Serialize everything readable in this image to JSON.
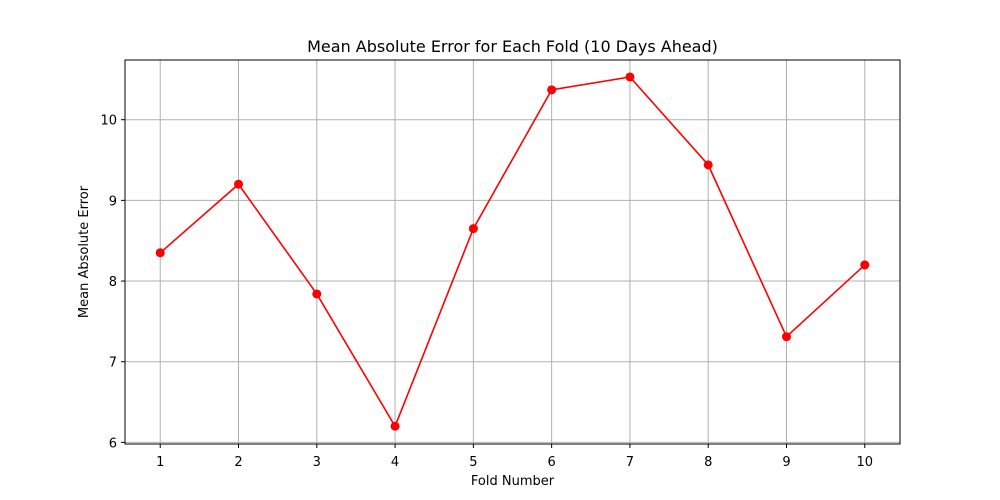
{
  "chart_data": {
    "type": "line",
    "title": "Mean Absolute Error for Each Fold (10 Days Ahead)",
    "xlabel": "Fold Number",
    "ylabel": "Mean Absolute Error",
    "categories": [
      "1",
      "2",
      "3",
      "4",
      "5",
      "6",
      "7",
      "8",
      "9",
      "10"
    ],
    "x": [
      1,
      2,
      3,
      4,
      5,
      6,
      7,
      8,
      9,
      10
    ],
    "series": [
      {
        "values": [
          8.35,
          9.2,
          7.84,
          6.2,
          8.65,
          10.37,
          10.53,
          9.44,
          7.31,
          8.2
        ],
        "color": "#ff0000",
        "marker": "circle"
      }
    ],
    "xlim": [
      0.55,
      10.45
    ],
    "ylim": [
      5.98,
      10.74
    ],
    "yticks": [
      6,
      7,
      8,
      9,
      10
    ],
    "xticks": [
      1,
      2,
      3,
      4,
      5,
      6,
      7,
      8,
      9,
      10
    ],
    "grid": true,
    "legend": "none"
  }
}
